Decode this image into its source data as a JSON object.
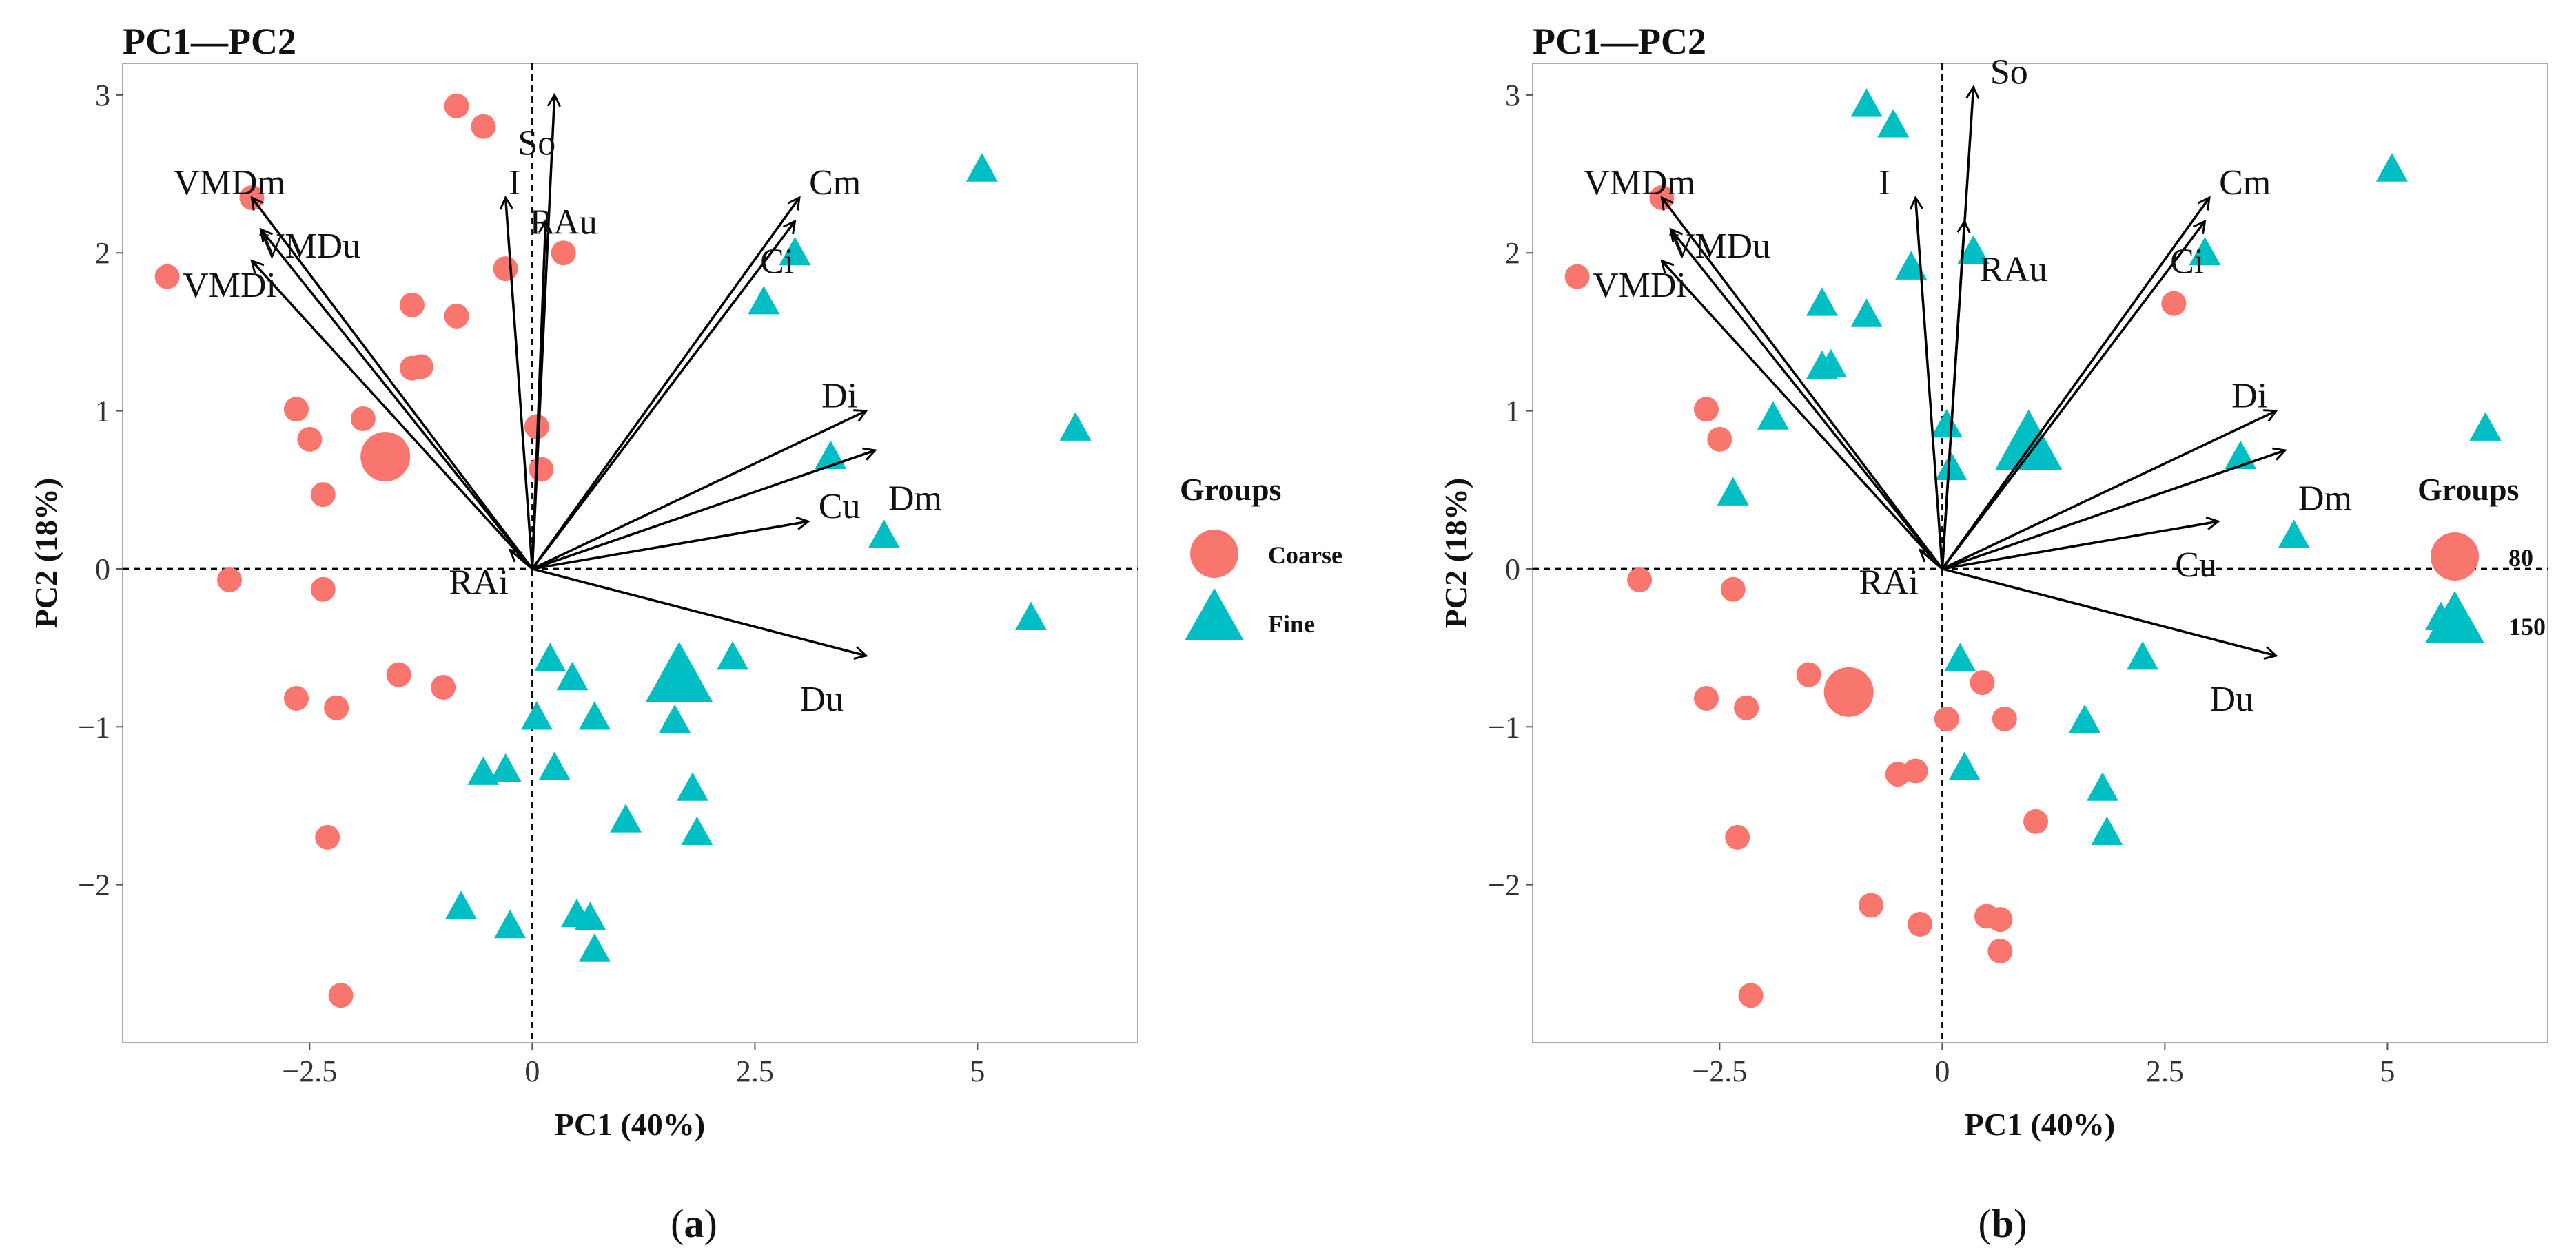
{
  "chart_data": [
    {
      "type": "scatter",
      "subtype": "pca-biplot",
      "panel": "a",
      "title": "PC1—PC2",
      "xlabel": "PC1 (40%)",
      "ylabel": "PC2 (18%)",
      "xlim": [
        -4.6,
        6.8
      ],
      "ylim": [
        -3.0,
        3.2
      ],
      "xticks": [
        -2.5,
        0,
        2.5,
        5
      ],
      "xtick_labels": [
        "−2.5",
        "0",
        "2.5",
        "5"
      ],
      "yticks": [
        -2,
        -1,
        0,
        1,
        2,
        3
      ],
      "ytick_labels": [
        "−2",
        "−1",
        "0",
        "1",
        "2",
        "3"
      ],
      "grid": false,
      "reference_lines": {
        "x": 0,
        "y": 0,
        "style": "dashed"
      },
      "legend": {
        "title": "Groups",
        "position": "right",
        "entries": [
          {
            "label": "Coarse",
            "shape": "circle",
            "color": "#F8766D"
          },
          {
            "label": "Fine",
            "shape": "triangle",
            "color": "#00BFC4"
          }
        ]
      },
      "loadings": [
        {
          "name": "VMDm",
          "x": -3.15,
          "y": 2.35,
          "lx": -3.4,
          "ly": 2.45
        },
        {
          "name": "VMDu",
          "x": -3.05,
          "y": 2.15,
          "lx": -2.5,
          "ly": 2.05
        },
        {
          "name": "VMDi",
          "x": -3.15,
          "y": 1.95,
          "lx": -3.4,
          "ly": 1.8
        },
        {
          "name": "I",
          "x": -0.3,
          "y": 2.35,
          "lx": -0.2,
          "ly": 2.45
        },
        {
          "name": "So",
          "x": 0.25,
          "y": 3.0,
          "lx": 0.05,
          "ly": 2.7
        },
        {
          "name": "RAu",
          "x": 0.15,
          "y": 2.2,
          "lx": 0.35,
          "ly": 2.2
        },
        {
          "name": "Cm",
          "x": 3.0,
          "y": 2.35,
          "lx": 3.4,
          "ly": 2.45
        },
        {
          "name": "Ci",
          "x": 2.95,
          "y": 2.2,
          "lx": 2.75,
          "ly": 1.95
        },
        {
          "name": "Di",
          "x": 3.75,
          "y": 1.0,
          "lx": 3.45,
          "ly": 1.1
        },
        {
          "name": "Dm",
          "x": 3.85,
          "y": 0.75,
          "lx": 4.3,
          "ly": 0.45
        },
        {
          "name": "Cu",
          "x": 3.1,
          "y": 0.3,
          "lx": 3.45,
          "ly": 0.4
        },
        {
          "name": "Du",
          "x": 3.75,
          "y": -0.55,
          "lx": 3.25,
          "ly": -0.82
        },
        {
          "name": "RAi",
          "x": -0.25,
          "y": 0.12,
          "lx": -0.6,
          "ly": -0.08
        }
      ],
      "series": [
        {
          "name": "Coarse",
          "shape": "circle",
          "color": "#F8766D",
          "points": [
            [
              -0.85,
              2.93
            ],
            [
              -0.55,
              2.8
            ],
            [
              -3.15,
              2.35
            ],
            [
              -4.1,
              1.85
            ],
            [
              -0.3,
              1.9
            ],
            [
              0.35,
              2.0
            ],
            [
              -1.35,
              1.67
            ],
            [
              -0.85,
              1.6
            ],
            [
              -1.35,
              1.27
            ],
            [
              -1.25,
              1.28
            ],
            [
              -2.65,
              1.01
            ],
            [
              -1.9,
              0.95
            ],
            [
              -2.5,
              0.82
            ],
            [
              -2.35,
              0.47
            ],
            [
              0.05,
              0.9
            ],
            [
              0.1,
              0.63
            ],
            [
              -3.4,
              -0.07
            ],
            [
              -2.35,
              -0.13
            ],
            [
              -1.5,
              -0.67
            ],
            [
              -1.0,
              -0.75
            ],
            [
              -2.65,
              -0.82
            ],
            [
              -2.2,
              -0.88
            ],
            [
              -2.3,
              -1.7
            ],
            [
              -2.15,
              -2.7
            ]
          ],
          "centroid": [
            -1.65,
            0.71
          ]
        },
        {
          "name": "Fine",
          "shape": "triangle",
          "color": "#00BFC4",
          "points": [
            [
              5.05,
              2.52
            ],
            [
              2.95,
              1.99
            ],
            [
              2.6,
              1.68
            ],
            [
              6.1,
              0.88
            ],
            [
              3.35,
              0.7
            ],
            [
              3.95,
              0.2
            ],
            [
              5.6,
              -0.32
            ],
            [
              0.2,
              -0.58
            ],
            [
              0.45,
              -0.7
            ],
            [
              2.25,
              -0.57
            ],
            [
              0.05,
              -0.95
            ],
            [
              0.7,
              -0.95
            ],
            [
              1.6,
              -0.97
            ],
            [
              -0.55,
              -1.3
            ],
            [
              -0.3,
              -1.28
            ],
            [
              0.25,
              -1.27
            ],
            [
              1.8,
              -1.4
            ],
            [
              1.05,
              -1.6
            ],
            [
              1.85,
              -1.68
            ],
            [
              -0.8,
              -2.15
            ],
            [
              -0.25,
              -2.27
            ],
            [
              0.5,
              -2.2
            ],
            [
              0.65,
              -2.22
            ],
            [
              0.7,
              -2.42
            ]
          ],
          "centroid": [
            1.65,
            -0.7
          ]
        }
      ]
    },
    {
      "type": "scatter",
      "subtype": "pca-biplot",
      "panel": "b",
      "title": "PC1—PC2",
      "xlabel": "PC1 (40%)",
      "ylabel": "PC2 (18%)",
      "xlim": [
        -4.6,
        6.8
      ],
      "ylim": [
        -3.0,
        3.2
      ],
      "xticks": [
        -2.5,
        0,
        2.5,
        5
      ],
      "xtick_labels": [
        "−2.5",
        "0",
        "2.5",
        "5"
      ],
      "yticks": [
        -2,
        -1,
        0,
        1,
        2,
        3
      ],
      "ytick_labels": [
        "−2",
        "−1",
        "0",
        "1",
        "2",
        "3"
      ],
      "grid": false,
      "reference_lines": {
        "x": 0,
        "y": 0,
        "style": "dashed"
      },
      "legend": {
        "title": "Groups",
        "position": "right",
        "entries": [
          {
            "label": "80",
            "shape": "circle",
            "color": "#F8766D"
          },
          {
            "label": "150",
            "shape": "triangle",
            "color": "#00BFC4"
          }
        ]
      },
      "loadings": [
        {
          "name": "VMDm",
          "x": -3.15,
          "y": 2.35,
          "lx": -3.4,
          "ly": 2.45
        },
        {
          "name": "VMDu",
          "x": -3.05,
          "y": 2.15,
          "lx": -2.5,
          "ly": 2.05
        },
        {
          "name": "VMDi",
          "x": -3.15,
          "y": 1.95,
          "lx": -3.4,
          "ly": 1.8
        },
        {
          "name": "I",
          "x": -0.3,
          "y": 2.35,
          "lx": -0.65,
          "ly": 2.45
        },
        {
          "name": "So",
          "x": 0.35,
          "y": 3.05,
          "lx": 0.75,
          "ly": 3.15
        },
        {
          "name": "RAu",
          "x": 0.25,
          "y": 2.2,
          "lx": 0.8,
          "ly": 1.9
        },
        {
          "name": "Cm",
          "x": 3.0,
          "y": 2.35,
          "lx": 3.4,
          "ly": 2.45
        },
        {
          "name": "Ci",
          "x": 2.95,
          "y": 2.2,
          "lx": 2.75,
          "ly": 1.95
        },
        {
          "name": "Di",
          "x": 3.75,
          "y": 1.0,
          "lx": 3.45,
          "ly": 1.1
        },
        {
          "name": "Dm",
          "x": 3.85,
          "y": 0.75,
          "lx": 4.3,
          "ly": 0.45
        },
        {
          "name": "Cu",
          "x": 3.1,
          "y": 0.3,
          "lx": 2.85,
          "ly": 0.03
        },
        {
          "name": "Du",
          "x": 3.75,
          "y": -0.55,
          "lx": 3.25,
          "ly": -0.82
        },
        {
          "name": "RAi",
          "x": -0.25,
          "y": 0.12,
          "lx": -0.6,
          "ly": -0.08
        }
      ],
      "series": [
        {
          "name": "80",
          "shape": "circle",
          "color": "#F8766D",
          "points": [
            [
              -3.15,
              2.35
            ],
            [
              -4.1,
              1.85
            ],
            [
              2.6,
              1.68
            ],
            [
              -2.65,
              1.01
            ],
            [
              -2.5,
              0.82
            ],
            [
              -3.4,
              -0.07
            ],
            [
              -2.35,
              -0.13
            ],
            [
              -1.5,
              -0.67
            ],
            [
              -2.65,
              -0.82
            ],
            [
              -2.2,
              -0.88
            ],
            [
              0.45,
              -0.72
            ],
            [
              0.05,
              -0.95
            ],
            [
              0.7,
              -0.95
            ],
            [
              -0.5,
              -1.3
            ],
            [
              -0.3,
              -1.28
            ],
            [
              1.05,
              -1.6
            ],
            [
              -2.3,
              -1.7
            ],
            [
              -0.8,
              -2.13
            ],
            [
              -0.25,
              -2.25
            ],
            [
              0.5,
              -2.2
            ],
            [
              0.65,
              -2.22
            ],
            [
              0.65,
              -2.42
            ],
            [
              -2.15,
              -2.7
            ]
          ],
          "centroid": [
            -1.05,
            -0.78
          ]
        },
        {
          "name": "150",
          "shape": "triangle",
          "color": "#00BFC4",
          "points": [
            [
              -0.85,
              2.93
            ],
            [
              -0.55,
              2.8
            ],
            [
              5.05,
              2.52
            ],
            [
              0.35,
              2.0
            ],
            [
              2.95,
              1.99
            ],
            [
              -0.35,
              1.9
            ],
            [
              -1.35,
              1.67
            ],
            [
              -0.85,
              1.6
            ],
            [
              -1.35,
              1.27
            ],
            [
              -1.25,
              1.28
            ],
            [
              -1.9,
              0.95
            ],
            [
              0.05,
              0.9
            ],
            [
              6.1,
              0.88
            ],
            [
              3.35,
              0.7
            ],
            [
              0.1,
              0.63
            ],
            [
              -2.35,
              0.47
            ],
            [
              3.95,
              0.2
            ],
            [
              5.6,
              -0.32
            ],
            [
              0.2,
              -0.58
            ],
            [
              2.25,
              -0.57
            ],
            [
              1.6,
              -0.97
            ],
            [
              0.25,
              -1.27
            ],
            [
              1.8,
              -1.4
            ],
            [
              1.85,
              -1.68
            ]
          ],
          "centroid": [
            0.97,
            0.77
          ]
        }
      ]
    }
  ],
  "captions": [
    {
      "open": "(",
      "letter": "a",
      "close": ")"
    },
    {
      "open": "(",
      "letter": "b",
      "close": ")"
    }
  ]
}
